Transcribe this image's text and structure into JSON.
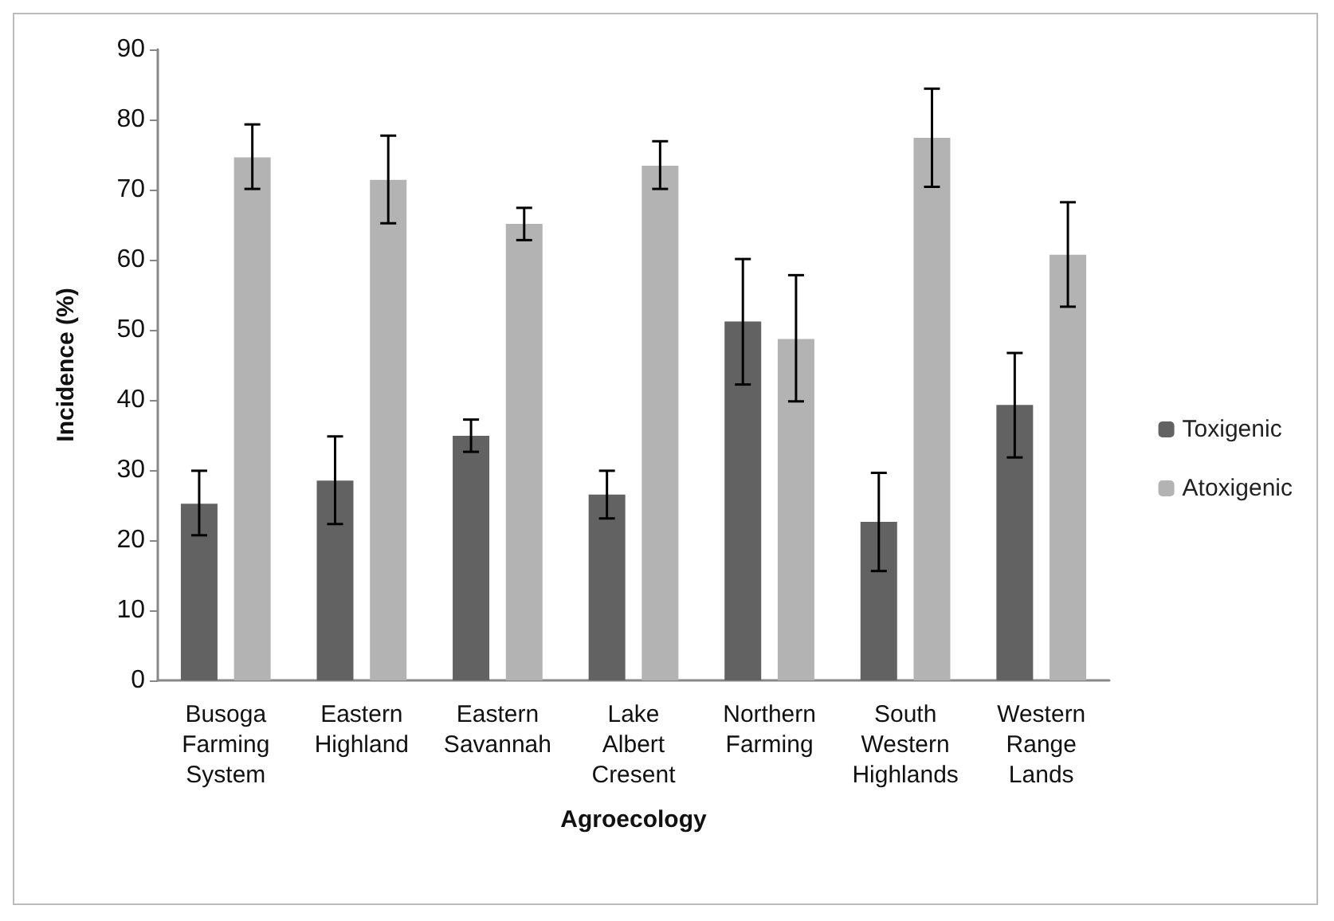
{
  "chart_data": {
    "type": "bar",
    "xlabel": "Agroecology",
    "ylabel": "Incidence (%)",
    "categories": [
      "Busoga Farming System",
      "Eastern Highland",
      "Eastern Savannah",
      "Lake Albert Cresent",
      "Northern Farming",
      "South Western Highlands",
      "Western Range Lands"
    ],
    "series": [
      {
        "name": "Toxigenic",
        "color": "#626262",
        "values": [
          25.2,
          28.5,
          34.9,
          26.5,
          51.2,
          22.6,
          39.3
        ],
        "errors": [
          [
            20.7,
            29.9
          ],
          [
            22.3,
            34.8
          ],
          [
            32.6,
            37.2
          ],
          [
            23.1,
            29.9
          ],
          [
            42.2,
            60.1
          ],
          [
            15.6,
            29.6
          ],
          [
            31.8,
            46.7
          ]
        ]
      },
      {
        "name": "Atoxigenic",
        "color": "#b3b3b3",
        "values": [
          74.6,
          71.4,
          65.1,
          73.4,
          48.7,
          77.4,
          60.7
        ],
        "errors": [
          [
            70.1,
            79.3
          ],
          [
            65.2,
            77.7
          ],
          [
            62.8,
            67.4
          ],
          [
            70.1,
            76.9
          ],
          [
            39.8,
            57.8
          ],
          [
            70.4,
            84.4
          ],
          [
            53.3,
            68.2
          ]
        ]
      }
    ],
    "ylim": [
      0,
      90
    ],
    "yticks": [
      0,
      10,
      20,
      30,
      40,
      50,
      60,
      70,
      80,
      90
    ],
    "grid": false,
    "legend": "right"
  }
}
